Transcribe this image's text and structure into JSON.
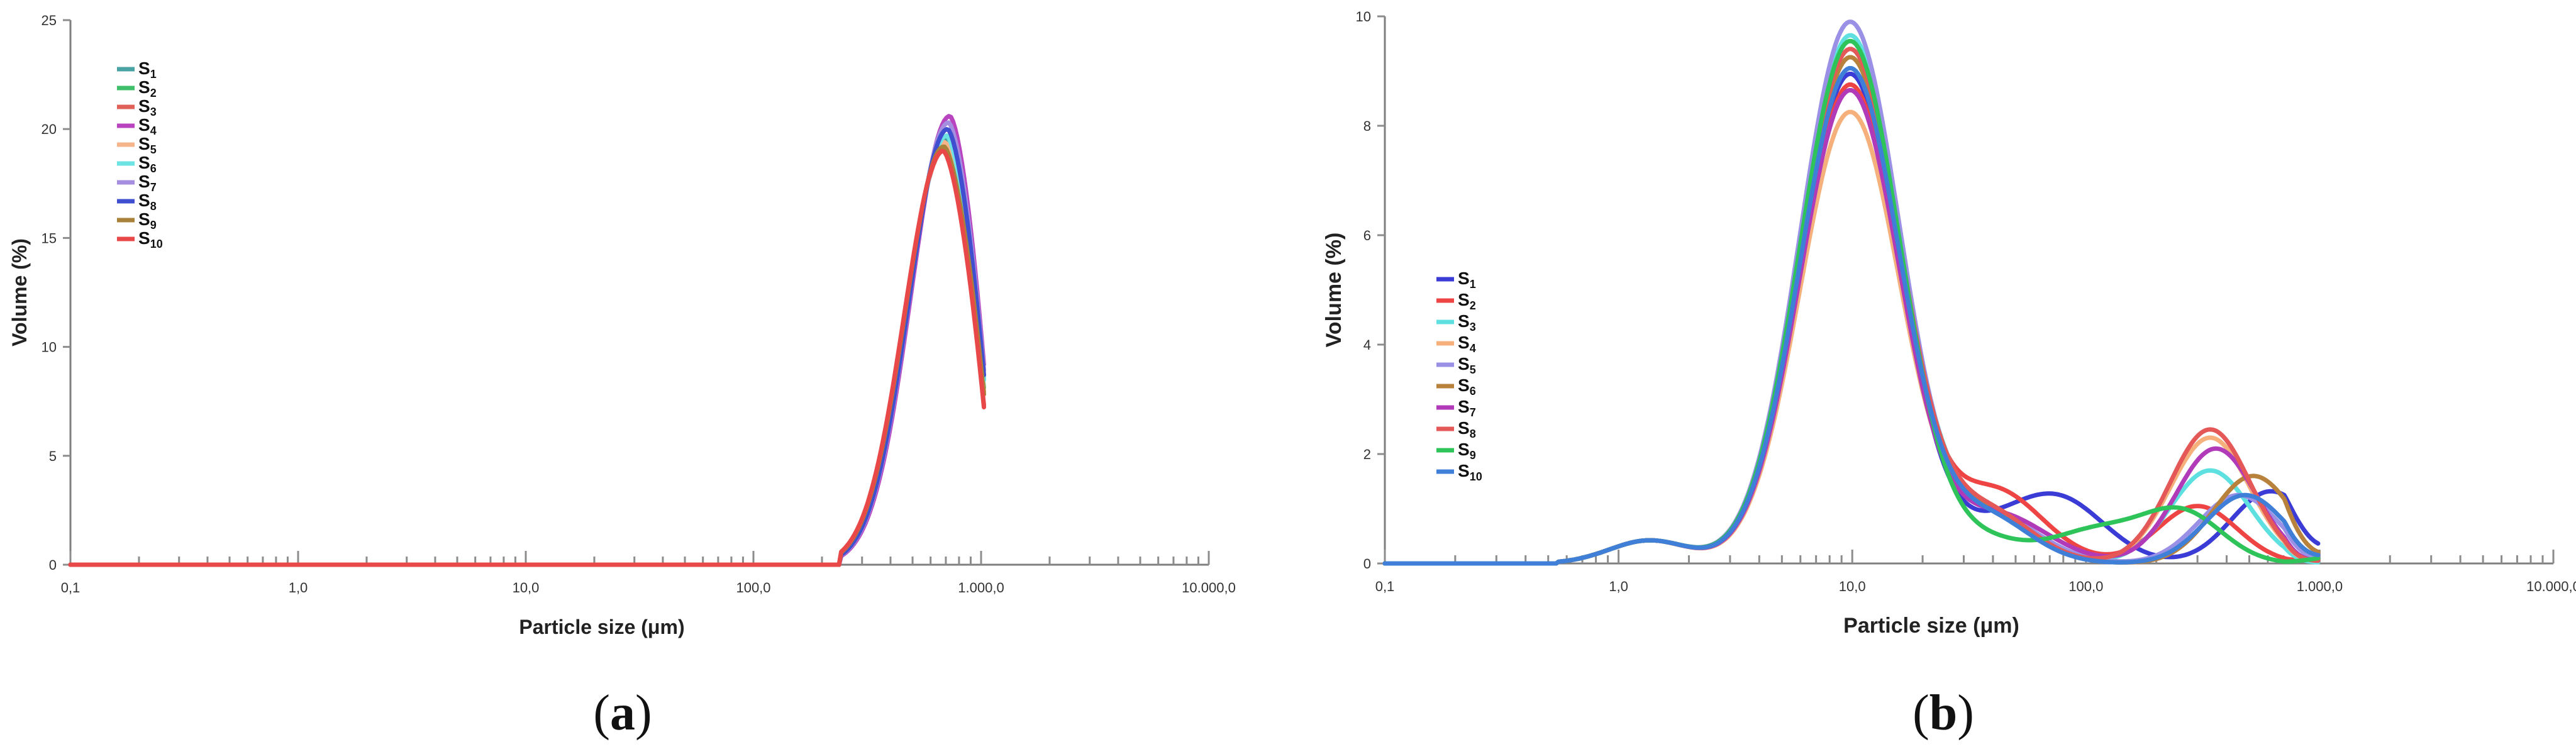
{
  "colors": {
    "axis": "#7f7f7f",
    "text": "#222222"
  },
  "chart_data": [
    {
      "panel_label": "a",
      "type": "line",
      "xscale": "log",
      "xlim": [
        0.1,
        10000
      ],
      "ylim": [
        0,
        25
      ],
      "xlabel": "Particle size (μm)",
      "ylabel": "Volume (%)",
      "x_tick_values": [
        0.1,
        1,
        10,
        100,
        1000,
        10000
      ],
      "x_tick_labels": [
        "0,1",
        "1,0",
        "10,0",
        "100,0",
        "1.000,0",
        "10.000,0"
      ],
      "y_ticks": [
        0,
        5,
        10,
        15,
        20,
        25
      ],
      "legend_position": "top-left",
      "series": [
        {
          "base": "S",
          "sub": "1",
          "color": "#4aa3a3",
          "shift": 0.0,
          "amp": 19.6,
          "end": 7.6
        },
        {
          "base": "S",
          "sub": "2",
          "color": "#3fbf6a",
          "shift": -0.005,
          "amp": 19.3,
          "end": 7.2
        },
        {
          "base": "S",
          "sub": "3",
          "color": "#e0605a",
          "shift": -0.01,
          "amp": 19.0,
          "end": 6.4
        },
        {
          "base": "S",
          "sub": "4",
          "color": "#b844c0",
          "shift": 0.018,
          "amp": 20.6,
          "end": 8.1
        },
        {
          "base": "S",
          "sub": "5",
          "color": "#f5b48a",
          "shift": -0.004,
          "amp": 19.4,
          "end": 7.0
        },
        {
          "base": "S",
          "sub": "6",
          "color": "#6ee3e3",
          "shift": 0.004,
          "amp": 19.7,
          "end": 7.5
        },
        {
          "base": "S",
          "sub": "7",
          "color": "#a58ee0",
          "shift": 0.012,
          "amp": 20.3,
          "end": 7.9
        },
        {
          "base": "S",
          "sub": "8",
          "color": "#3f4fd0",
          "shift": 0.008,
          "amp": 20.0,
          "end": 7.7
        },
        {
          "base": "S",
          "sub": "9",
          "color": "#a8823a",
          "shift": -0.008,
          "amp": 19.2,
          "end": 6.9
        },
        {
          "base": "S",
          "sub": "10",
          "color": "#e84848",
          "shift": -0.012,
          "amp": 19.0,
          "end": 6.3
        }
      ]
    },
    {
      "panel_label": "b",
      "type": "line",
      "xscale": "log",
      "xlim": [
        0.1,
        10000
      ],
      "ylim": [
        0,
        10
      ],
      "xlabel": "Particle size (μm)",
      "ylabel": "Volume (%)",
      "x_tick_values": [
        0.1,
        1,
        10,
        100,
        1000,
        10000
      ],
      "x_tick_labels": [
        "0,1",
        "1,0",
        "10,0",
        "100,0",
        "1.000,0",
        "10.000,0"
      ],
      "y_ticks": [
        0,
        2,
        4,
        6,
        8,
        10
      ],
      "legend_position": "middle-left",
      "series": [
        {
          "base": "S",
          "sub": "1",
          "color": "#3b3bd6",
          "peak": 8.95,
          "c2x": 75,
          "c2a": 1.2,
          "c3x": 620,
          "c3a": 1.32,
          "end": 0.35
        },
        {
          "base": "S",
          "sub": "2",
          "color": "#ee4444",
          "peak": 8.75,
          "c2x": 45,
          "c2a": 0.95,
          "c3x": 300,
          "c3a": 1.05,
          "end": 0.1
        },
        {
          "base": "S",
          "sub": "3",
          "color": "#5ee0e0",
          "peak": 9.65,
          "c2x": 40,
          "c2a": 0.5,
          "c3x": 340,
          "c3a": 1.7,
          "end": 0.02
        },
        {
          "base": "S",
          "sub": "4",
          "color": "#f5b07c",
          "peak": 8.25,
          "c2x": 42,
          "c2a": 0.55,
          "c3x": 340,
          "c3a": 2.3,
          "end": 0.05
        },
        {
          "base": "S",
          "sub": "5",
          "color": "#9a90e6",
          "peak": 9.9,
          "c2x": 45,
          "c2a": 0.5,
          "c3x": 450,
          "c3a": 1.25,
          "end": 0.1
        },
        {
          "base": "S",
          "sub": "6",
          "color": "#b8823c",
          "peak": 9.25,
          "c2x": 40,
          "c2a": 0.5,
          "c3x": 520,
          "c3a": 1.6,
          "end": 0.2
        },
        {
          "base": "S",
          "sub": "7",
          "color": "#b03ab8",
          "peak": 8.65,
          "c2x": 50,
          "c2a": 0.55,
          "c3x": 360,
          "c3a": 2.1,
          "end": 0.05
        },
        {
          "base": "S",
          "sub": "8",
          "color": "#e55858",
          "peak": 9.4,
          "c2x": 40,
          "c2a": 0.55,
          "c3x": 340,
          "c3a": 2.45,
          "end": 0.05
        },
        {
          "base": "S",
          "sub": "9",
          "color": "#2fc45a",
          "peak": 9.55,
          "c2x": 110,
          "c2a": 0.6,
          "c3x": 260,
          "c3a": 0.9,
          "end": 0.1
        },
        {
          "base": "S",
          "sub": "10",
          "color": "#3f7fd8",
          "peak": 9.05,
          "c2x": 40,
          "c2a": 0.45,
          "c3x": 480,
          "c3a": 1.25,
          "end": 0.15
        }
      ]
    }
  ]
}
